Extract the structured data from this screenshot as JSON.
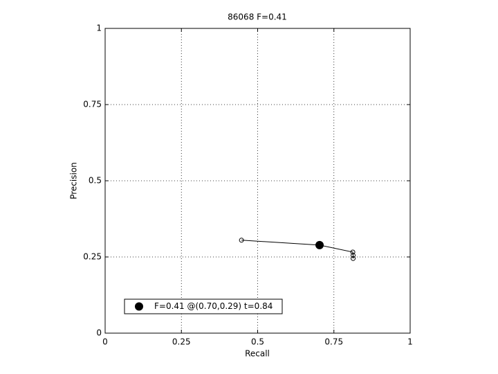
{
  "chart_data": {
    "type": "line",
    "title": "86068 F=0.41",
    "xlabel": "Recall",
    "ylabel": "Precision",
    "xlim": [
      0,
      1
    ],
    "ylim": [
      0,
      1
    ],
    "xticks": [
      0,
      0.25,
      0.5,
      0.75,
      1
    ],
    "yticks": [
      0,
      0.25,
      0.5,
      0.75,
      1
    ],
    "grid": true,
    "legend": "lower left",
    "series": [
      {
        "color": "#000000",
        "marker": "open-circle",
        "x": [
          0.447,
          0.703,
          0.812,
          0.813,
          0.813
        ],
        "values": [
          0.305,
          0.289,
          0.266,
          0.255,
          0.245
        ]
      },
      {
        "name": "F=0.41 @(0.70,0.29) t=0.84",
        "color": "#000000",
        "marker": "filled-circle",
        "x": [
          0.703
        ],
        "values": [
          0.289
        ]
      }
    ]
  }
}
